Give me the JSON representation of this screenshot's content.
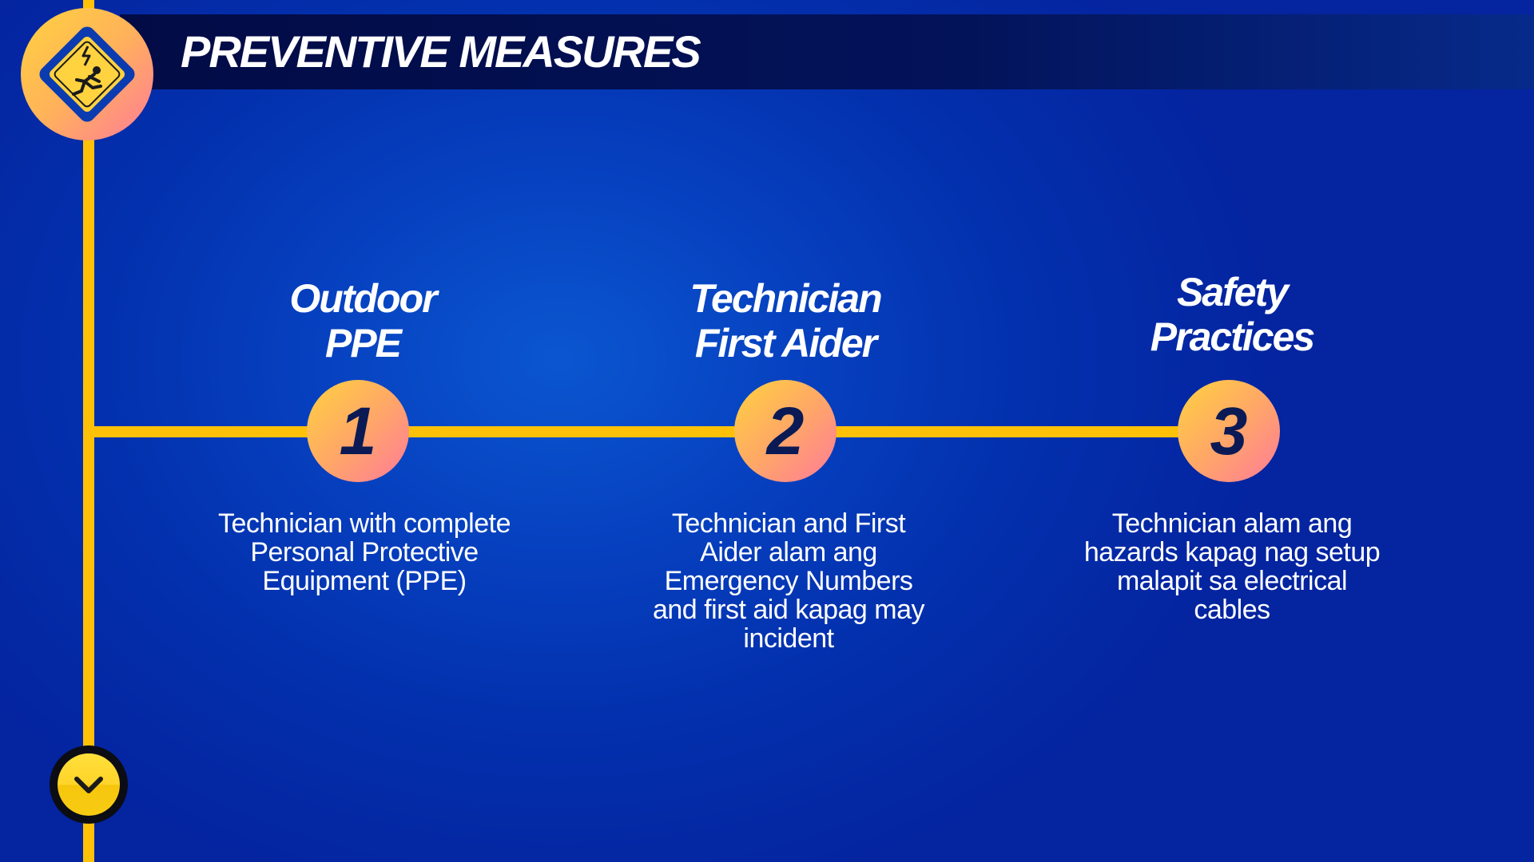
{
  "header": {
    "title": "PREVENTIVE MEASURES",
    "logo_icon": "electric-shock-warning-icon"
  },
  "steps": [
    {
      "number": "1",
      "title_line1": "Outdoor",
      "title_line2": "PPE",
      "desc_lines": [
        "Technician with complete",
        "Personal Protective",
        "Equipment (PPE)"
      ]
    },
    {
      "number": "2",
      "title_line1": "Technician",
      "title_line2": "First Aider",
      "desc_lines": [
        "Technician and First",
        "Aider alam ang",
        "Emergency Numbers",
        "and first aid kapag may",
        "incident"
      ]
    },
    {
      "number": "3",
      "title_line1": "Safety",
      "title_line2": "Practices",
      "desc_lines": [
        "Technician alam ang",
        "hazards kapag nag setup",
        "malapit sa electrical",
        "cables"
      ]
    }
  ],
  "nav": {
    "down_icon": "chevron-down-icon"
  },
  "colors": {
    "background": "#0640bf",
    "header_bar": "#020b45",
    "accent_line": "#ffc107",
    "number_text": "#0b1a55"
  }
}
